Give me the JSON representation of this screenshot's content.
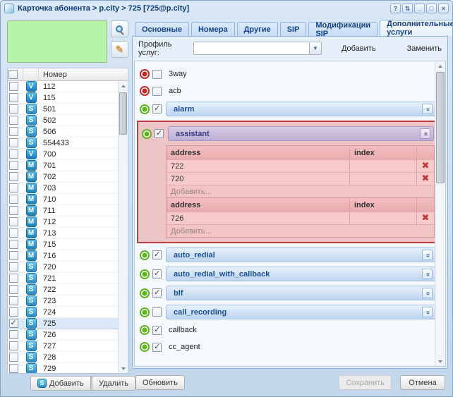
{
  "window": {
    "title": "Карточка абонента > p.city > 725 [725@p.city]",
    "controls": [
      {
        "name": "help",
        "glyph": "?"
      },
      {
        "name": "refresh",
        "glyph": "⇅"
      },
      {
        "name": "minimize",
        "glyph": "_"
      },
      {
        "name": "maximize",
        "glyph": "□"
      },
      {
        "name": "close",
        "glyph": "×"
      }
    ]
  },
  "left_panel": {
    "search_value": "",
    "grid": {
      "number_header": "Номер",
      "rows": [
        {
          "number": "112",
          "type": "V",
          "checked": false,
          "selected": false
        },
        {
          "number": "115",
          "type": "V",
          "checked": false,
          "selected": false
        },
        {
          "number": "501",
          "type": "S",
          "checked": false,
          "selected": false
        },
        {
          "number": "502",
          "type": "S",
          "checked": false,
          "selected": false
        },
        {
          "number": "506",
          "type": "S",
          "checked": false,
          "selected": false
        },
        {
          "number": "554433",
          "type": "S",
          "checked": false,
          "selected": false
        },
        {
          "number": "700",
          "type": "V",
          "checked": false,
          "selected": false
        },
        {
          "number": "701",
          "type": "M",
          "checked": false,
          "selected": false
        },
        {
          "number": "702",
          "type": "M",
          "checked": false,
          "selected": false
        },
        {
          "number": "703",
          "type": "M",
          "checked": false,
          "selected": false
        },
        {
          "number": "710",
          "type": "M",
          "checked": false,
          "selected": false
        },
        {
          "number": "711",
          "type": "M",
          "checked": false,
          "selected": false
        },
        {
          "number": "712",
          "type": "M",
          "checked": false,
          "selected": false
        },
        {
          "number": "713",
          "type": "M",
          "checked": false,
          "selected": false
        },
        {
          "number": "715",
          "type": "M",
          "checked": false,
          "selected": false
        },
        {
          "number": "716",
          "type": "M",
          "checked": false,
          "selected": false
        },
        {
          "number": "720",
          "type": "S",
          "checked": false,
          "selected": false
        },
        {
          "number": "721",
          "type": "S",
          "checked": false,
          "selected": false
        },
        {
          "number": "722",
          "type": "S",
          "checked": false,
          "selected": false
        },
        {
          "number": "723",
          "type": "S",
          "checked": false,
          "selected": false
        },
        {
          "number": "724",
          "type": "S",
          "checked": false,
          "selected": false
        },
        {
          "number": "725",
          "type": "S",
          "checked": true,
          "selected": true
        },
        {
          "number": "726",
          "type": "S",
          "checked": false,
          "selected": false
        },
        {
          "number": "727",
          "type": "S",
          "checked": false,
          "selected": false
        },
        {
          "number": "728",
          "type": "S",
          "checked": false,
          "selected": false
        },
        {
          "number": "729",
          "type": "S",
          "checked": false,
          "selected": false
        }
      ]
    },
    "add_button": "Добавить",
    "add_icon_letter": "S",
    "delete_button": "Удалить"
  },
  "tabs": {
    "items": [
      {
        "key": "osnovnye",
        "label": "Основные",
        "active": false
      },
      {
        "key": "nomera",
        "label": "Номера",
        "active": false
      },
      {
        "key": "drugie",
        "label": "Другие",
        "active": false
      },
      {
        "key": "sip",
        "label": "SIP",
        "active": false
      },
      {
        "key": "modifikacii-sip",
        "label": "Модификации SIP",
        "active": false
      },
      {
        "key": "dopolnitelnye-uslugi",
        "label": "Дополнительные услуги",
        "active": true
      }
    ]
  },
  "profile_row": {
    "label": "Профиль услуг:",
    "select_value": "",
    "add_label": "Добавить",
    "replace_label": "Заменить"
  },
  "services": {
    "items": [
      {
        "name": "3way",
        "enabled": false,
        "checked": false,
        "style": "plain"
      },
      {
        "name": "acb",
        "enabled": false,
        "checked": false,
        "style": "plain"
      },
      {
        "name": "alarm",
        "enabled": true,
        "checked": true,
        "style": "bar",
        "collapsed": true
      },
      {
        "name": "assistant",
        "enabled": true,
        "checked": true,
        "style": "bar",
        "collapsed": false,
        "highlighted": true,
        "tables": [
          {
            "headers": [
              "address",
              "index"
            ],
            "rows": [
              {
                "address": "722",
                "index": ""
              },
              {
                "address": "720",
                "index": ""
              }
            ],
            "add_label": "Добавить..."
          },
          {
            "headers": [
              "address",
              "index"
            ],
            "rows": [
              {
                "address": "726",
                "index": ""
              }
            ],
            "add_label": "Добавить..."
          }
        ]
      },
      {
        "name": "auto_redial",
        "enabled": true,
        "checked": true,
        "style": "bar",
        "collapsed": true
      },
      {
        "name": "auto_redial_with_callback",
        "enabled": true,
        "checked": true,
        "style": "bar",
        "collapsed": true
      },
      {
        "name": "blf",
        "enabled": true,
        "checked": true,
        "style": "bar",
        "collapsed": true
      },
      {
        "name": "call_recording",
        "enabled": true,
        "checked": false,
        "style": "bar",
        "collapsed": true
      },
      {
        "name": "callback",
        "enabled": true,
        "checked": true,
        "style": "plain"
      },
      {
        "name": "cc_agent",
        "enabled": true,
        "checked": true,
        "style": "plain"
      }
    ]
  },
  "footer": {
    "refresh_label": "Обновить",
    "save_label": "Сохранить",
    "save_enabled": false,
    "cancel_label": "Отмена"
  },
  "colors": {
    "accent": "#15428b",
    "enabled_green": "#5fb31c",
    "disabled_red": "#c22a2a",
    "highlight_border": "#bb4044",
    "highlight_bg": "#edc5c7",
    "search_box_green": "#b6f3a8"
  }
}
